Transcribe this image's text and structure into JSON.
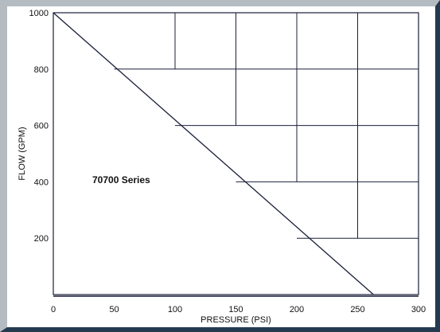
{
  "chart_data": {
    "type": "line",
    "xlabel": "PRESSURE (PSI)",
    "ylabel": "FLOW (GPM)",
    "xlim": [
      0,
      300
    ],
    "ylim": [
      0,
      1000
    ],
    "x_ticks": [
      0,
      50,
      100,
      150,
      200,
      250,
      300
    ],
    "y_ticks": [
      200,
      400,
      600,
      800,
      1000
    ],
    "grid": true,
    "series": [
      {
        "name": "70700 Series",
        "x": [
          0,
          263
        ],
        "y": [
          1000,
          0
        ],
        "color": "#1a1f3a"
      }
    ],
    "grid_cells_above_curve": [
      {
        "x": [
          50,
          300
        ],
        "y": [
          800,
          1000
        ]
      },
      {
        "x": [
          100,
          300
        ],
        "y": [
          600,
          800
        ]
      },
      {
        "x": [
          150,
          300
        ],
        "y": [
          400,
          600
        ]
      },
      {
        "x": [
          200,
          300
        ],
        "y": [
          200,
          400
        ]
      },
      {
        "x": [
          250,
          300
        ],
        "y": [
          0,
          200
        ]
      }
    ],
    "line_color": "#1a1f3a"
  }
}
